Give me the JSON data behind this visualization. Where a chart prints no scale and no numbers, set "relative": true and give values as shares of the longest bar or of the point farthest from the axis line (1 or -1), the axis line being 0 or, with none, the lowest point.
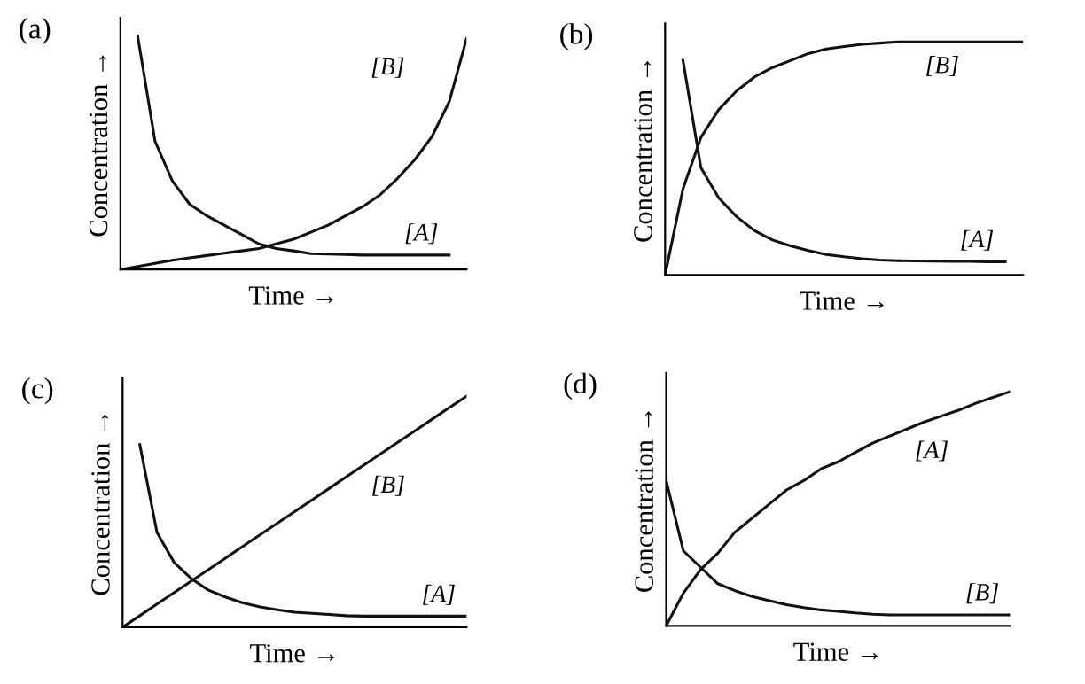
{
  "chart_data": [
    {
      "type": "line",
      "title": "(a)",
      "xlabel": "Time →",
      "ylabel": "Concentration →",
      "relative": true,
      "categories": [
        null,
        null,
        null,
        null,
        null,
        null,
        null,
        null,
        null,
        null,
        null,
        null,
        null,
        null,
        null,
        null,
        null,
        null,
        null,
        null,
        null
      ],
      "series": [
        {
          "name": "[A]",
          "color": "#111111",
          "values": [
            null,
            1.0,
            0.55,
            0.38,
            0.28,
            0.23,
            0.19,
            0.15,
            0.11,
            0.09,
            0.08,
            0.068,
            0.066,
            0.064,
            0.062,
            0.062,
            0.062,
            0.062,
            0.062,
            0.062,
            null
          ]
        },
        {
          "name": "[B]",
          "color": "#111111",
          "values": [
            0,
            0.013,
            0.026,
            0.04,
            0.05,
            0.06,
            0.07,
            0.08,
            0.09,
            0.11,
            0.13,
            0.16,
            0.19,
            0.23,
            0.27,
            0.32,
            0.39,
            0.47,
            0.57,
            0.72,
            0.99
          ]
        }
      ]
    },
    {
      "type": "line",
      "title": "(b)",
      "xlabel": "Time →",
      "ylabel": "Concentration →",
      "relative": true,
      "categories": [
        null,
        null,
        null,
        null,
        null,
        null,
        null,
        null,
        null,
        null,
        null,
        null,
        null,
        null,
        null,
        null,
        null,
        null,
        null,
        null,
        null
      ],
      "series": [
        {
          "name": "[A]",
          "color": "#111111",
          "values": [
            null,
            0.92,
            0.46,
            0.33,
            0.25,
            0.19,
            0.15,
            0.125,
            0.105,
            0.088,
            0.078,
            0.07,
            0.064,
            0.061,
            0.06,
            0.059,
            0.058,
            0.058,
            0.057,
            0.057,
            null
          ]
        },
        {
          "name": "[B]",
          "color": "#111111",
          "values": [
            0,
            0.37,
            0.59,
            0.71,
            0.79,
            0.85,
            0.89,
            0.92,
            0.95,
            0.97,
            0.98,
            0.99,
            0.995,
            1.0,
            1.0,
            1.0,
            1.0,
            1.0,
            1.0,
            1.0,
            1.0
          ]
        }
      ]
    },
    {
      "type": "line",
      "title": "(c)",
      "xlabel": "Time →",
      "ylabel": "Concentration →",
      "relative": true,
      "categories": [
        null,
        null,
        null,
        null,
        null,
        null,
        null,
        null,
        null,
        null,
        null,
        null,
        null,
        null,
        null,
        null,
        null,
        null,
        null,
        null,
        null
      ],
      "series": [
        {
          "name": "[A]",
          "color": "#111111",
          "values": [
            null,
            0.79,
            0.41,
            0.28,
            0.21,
            0.16,
            0.13,
            0.105,
            0.088,
            0.075,
            0.065,
            0.06,
            0.055,
            0.05,
            0.048,
            0.048,
            0.048,
            0.048,
            0.048,
            0.048,
            0.048
          ]
        },
        {
          "name": "[B]",
          "color": "#111111",
          "values": [
            0,
            0.05,
            0.1,
            0.15,
            0.2,
            0.25,
            0.3,
            0.35,
            0.4,
            0.45,
            0.5,
            0.55,
            0.6,
            0.65,
            0.7,
            0.75,
            0.8,
            0.85,
            0.9,
            0.95,
            1.0
          ]
        }
      ]
    },
    {
      "type": "line",
      "title": "(d)",
      "xlabel": "Time →",
      "ylabel": "Concentration →",
      "relative": true,
      "categories": [
        null,
        null,
        null,
        null,
        null,
        null,
        null,
        null,
        null,
        null,
        null,
        null,
        null,
        null,
        null,
        null,
        null,
        null,
        null,
        null,
        null
      ],
      "series": [
        {
          "name": "[A]",
          "color": "#111111",
          "values": [
            0,
            0.14,
            0.24,
            0.31,
            0.4,
            0.46,
            0.52,
            0.58,
            0.62,
            0.67,
            0.7,
            0.74,
            0.78,
            0.81,
            0.84,
            0.87,
            0.895,
            0.92,
            0.95,
            0.975,
            1.0
          ]
        },
        {
          "name": "[B]",
          "color": "#111111",
          "values": [
            0.62,
            0.32,
            0.25,
            0.18,
            0.15,
            0.125,
            0.107,
            0.09,
            0.078,
            0.068,
            0.062,
            0.055,
            0.05,
            0.047,
            0.047,
            0.047,
            0.047,
            0.047,
            0.047,
            0.047,
            0.047
          ]
        }
      ]
    }
  ]
}
